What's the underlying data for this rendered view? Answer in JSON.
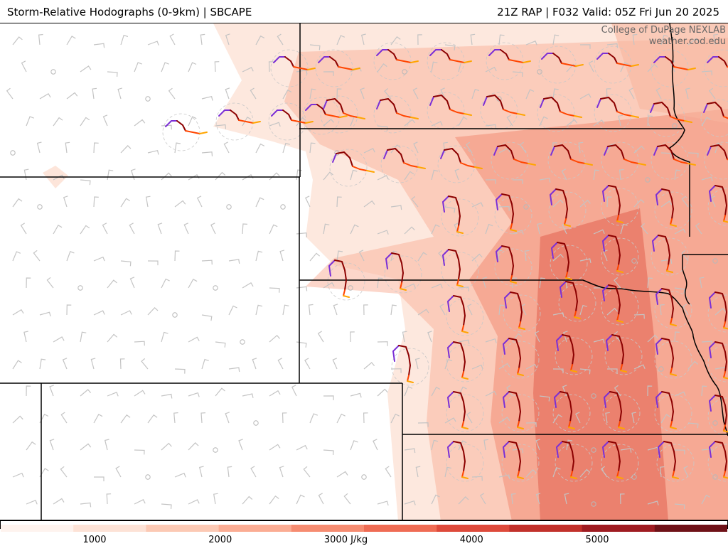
{
  "header": {
    "title": "Storm-Relative Hodographs (0-9km) | SBCAPE",
    "valid": "21Z RAP | F032 Valid: 05Z Fri Jun 20 2025"
  },
  "credit": {
    "line1": "College of DuPage NEXLAB",
    "line2": "weather.cod.edu"
  },
  "colorbar": {
    "colors": [
      "#fef3ee",
      "#fde2d6",
      "#fcc9b4",
      "#fbac93",
      "#f68c71",
      "#ef6c54",
      "#de4a3b",
      "#c2312b",
      "#9f1c22",
      "#6f1218"
    ],
    "ticks": [
      {
        "value": 1000,
        "label": "1000"
      },
      {
        "value": 2000,
        "label": "2000"
      },
      {
        "value": 3000,
        "label": "3000 J/kg"
      },
      {
        "value": 4000,
        "label": "4000"
      },
      {
        "value": 5000,
        "label": "5000"
      }
    ]
  },
  "map_data": {
    "hodograph_colors": [
      "#7b2fd6",
      "#8b0000",
      "#ff4500",
      "#ffa500"
    ],
    "cape_fill_colors": [
      "#fde5da",
      "#f9b59e",
      "#f07f66",
      "#e05a48"
    ]
  }
}
